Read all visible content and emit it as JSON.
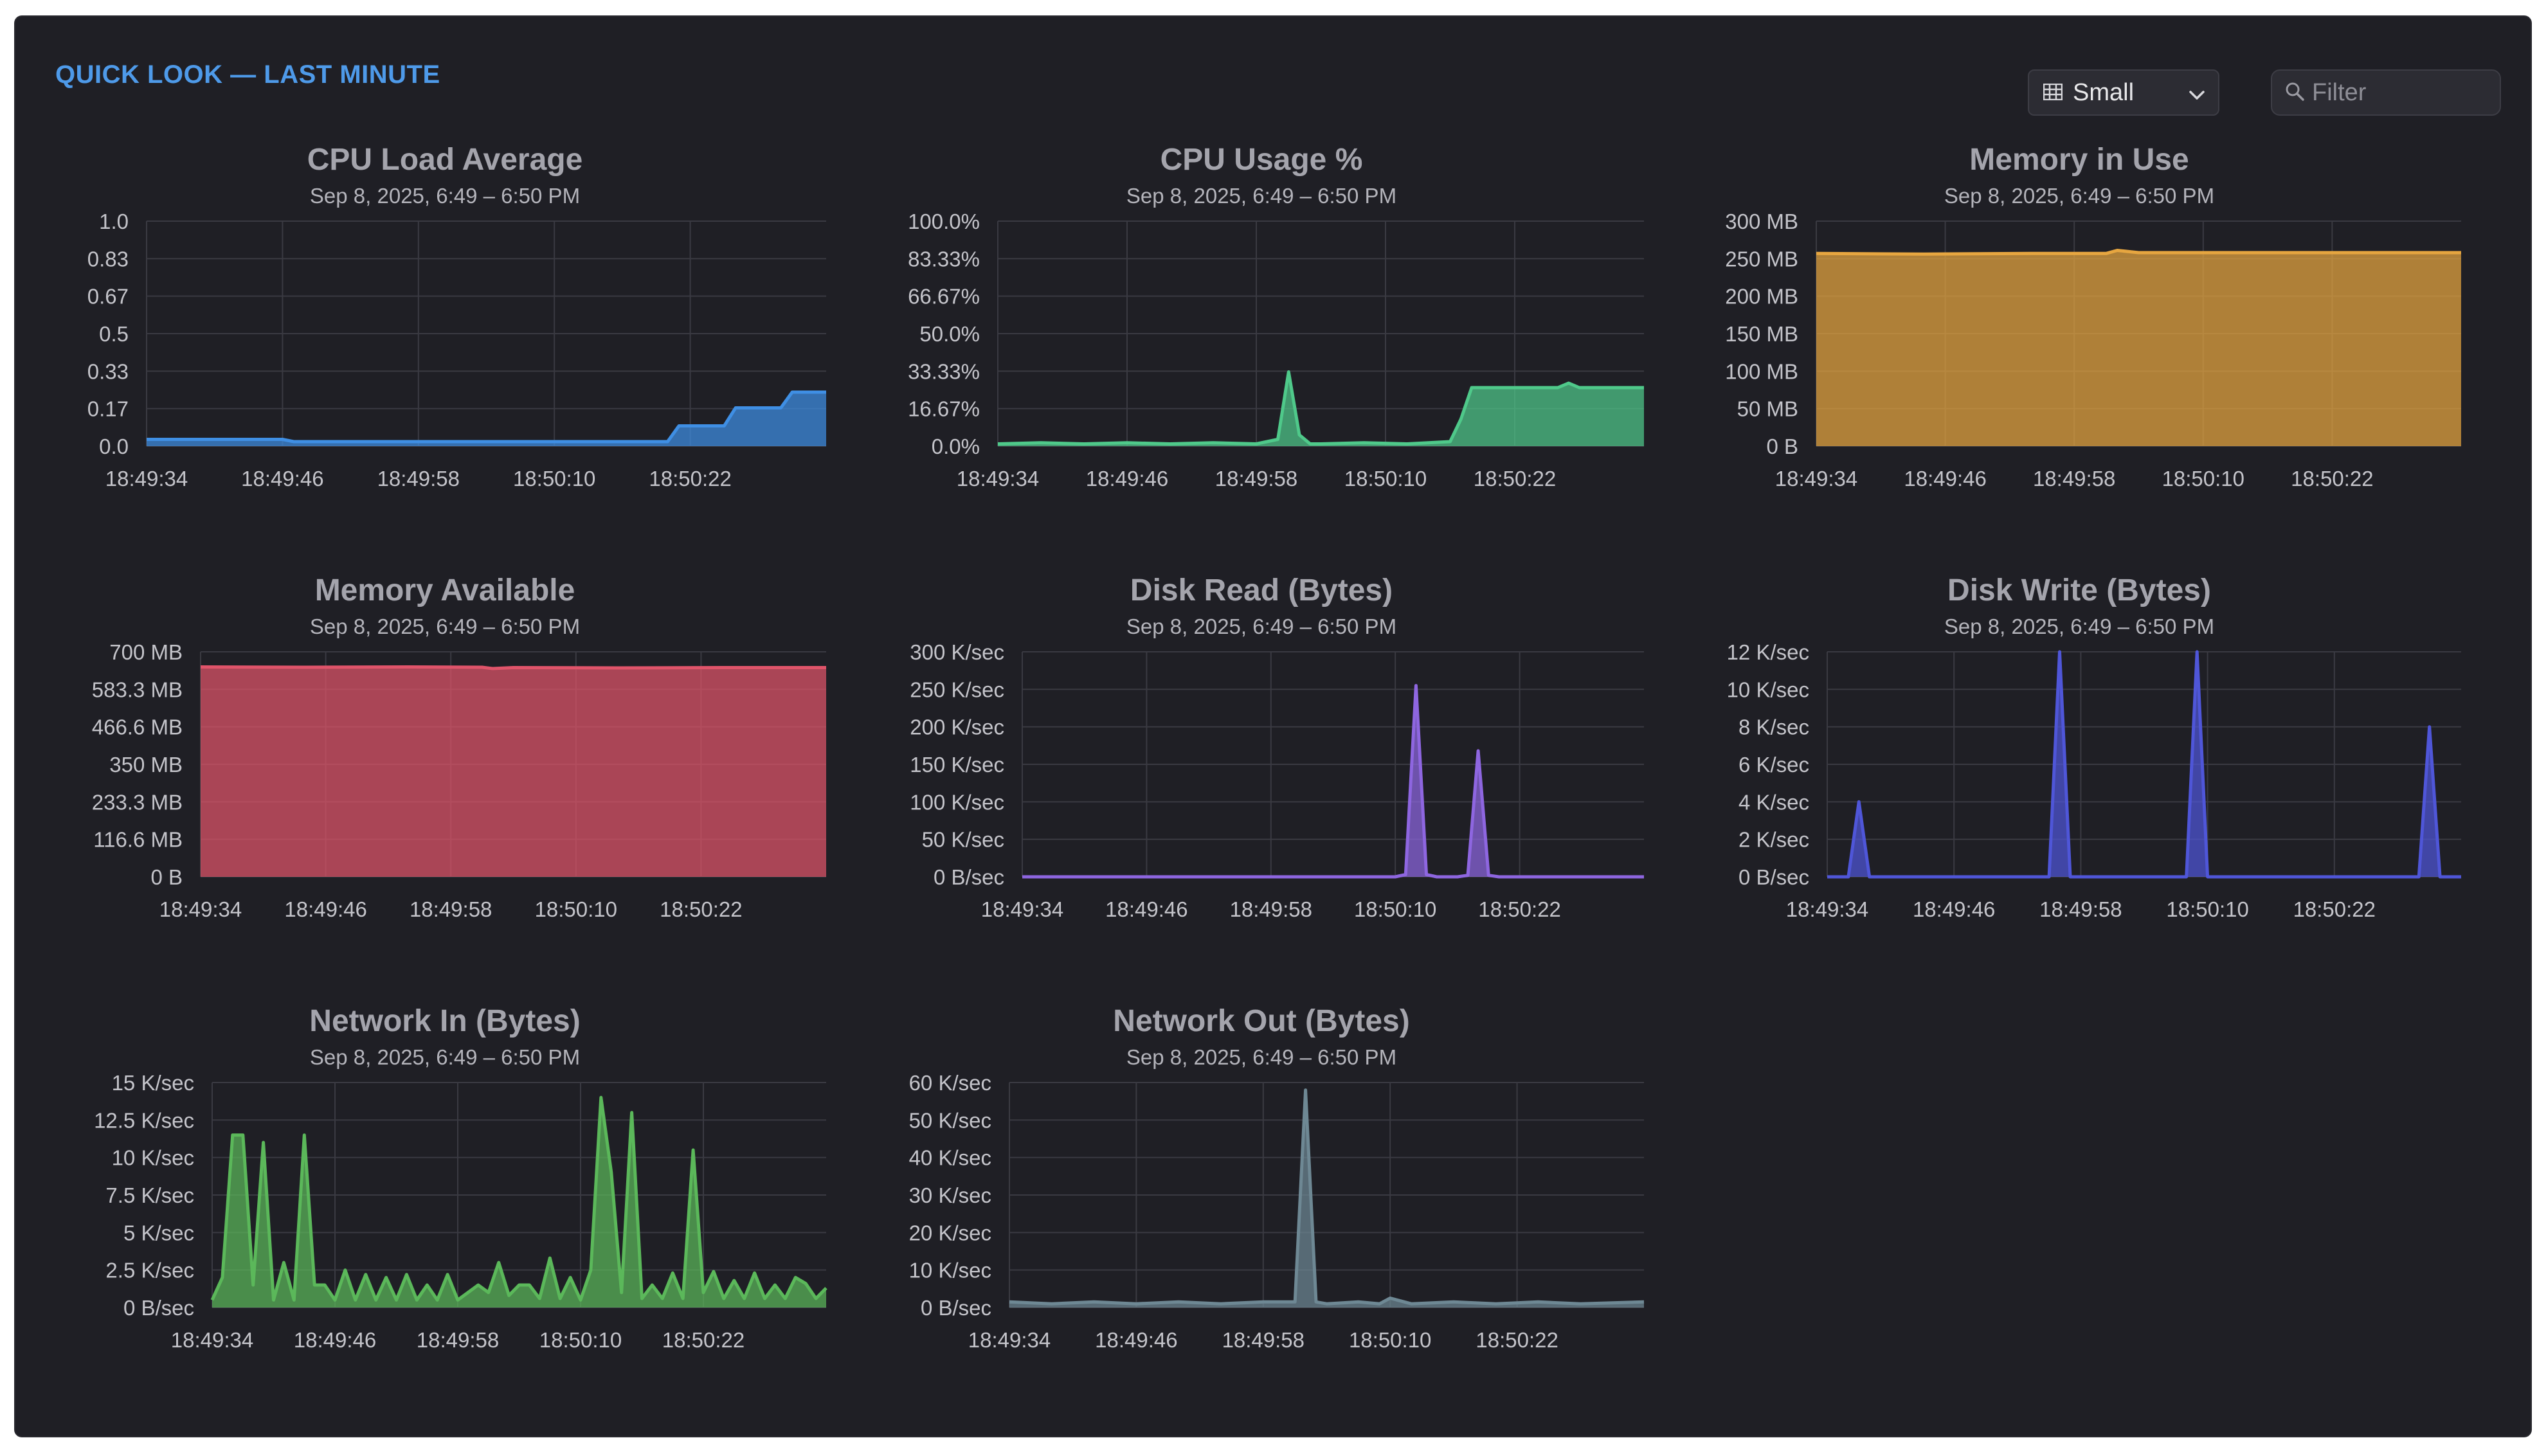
{
  "header": {
    "title": "QUICK LOOK — LAST MINUTE",
    "size_select": {
      "value": "Small"
    },
    "filter": {
      "placeholder": "Filter",
      "value": ""
    }
  },
  "chart_data": [
    {
      "type": "area",
      "title": "CPU Load Average",
      "subtitle": "Sep 8, 2025, 6:49 – 6:50 PM",
      "color": "#3f8fe4",
      "xlabel": "",
      "ylabel": "",
      "x_ticks": [
        "18:49:34",
        "18:49:46",
        "18:49:58",
        "18:50:10",
        "18:50:22"
      ],
      "y_ticks": [
        "1.0",
        "0.83",
        "0.67",
        "0.5",
        "0.33",
        "0.17",
        "0.0"
      ],
      "ylim": [
        0,
        1
      ],
      "x": [
        0,
        12,
        13,
        41,
        46,
        47,
        51,
        52,
        56,
        57,
        60
      ],
      "values": [
        0.03,
        0.03,
        0.02,
        0.02,
        0.02,
        0.09,
        0.09,
        0.17,
        0.17,
        0.24,
        0.24
      ]
    },
    {
      "type": "area",
      "title": "CPU Usage %",
      "subtitle": "Sep 8, 2025, 6:49 – 6:50 PM",
      "color": "#4fc98a",
      "xlabel": "",
      "ylabel": "",
      "x_ticks": [
        "18:49:34",
        "18:49:46",
        "18:49:58",
        "18:50:10",
        "18:50:22"
      ],
      "y_ticks": [
        "100.0%",
        "83.33%",
        "66.67%",
        "50.0%",
        "33.33%",
        "16.67%",
        "0.0%"
      ],
      "ylim": [
        0,
        100
      ],
      "x": [
        0,
        4,
        8,
        12,
        16,
        20,
        24,
        26,
        27,
        28,
        29,
        30,
        34,
        38,
        42,
        43,
        44,
        45,
        46,
        48,
        50,
        52,
        53,
        54,
        56,
        58,
        60
      ],
      "values": [
        1,
        1.5,
        1,
        1.5,
        1,
        1.5,
        1,
        3,
        33,
        5,
        1,
        1,
        1.5,
        1,
        2,
        12,
        26,
        26,
        26,
        26,
        26,
        26,
        28,
        26,
        26,
        26,
        26
      ]
    },
    {
      "type": "area",
      "title": "Memory in Use",
      "subtitle": "Sep 8, 2025, 6:49 – 6:50 PM",
      "color": "#e7a640",
      "xlabel": "",
      "ylabel": "",
      "x_ticks": [
        "18:49:34",
        "18:49:46",
        "18:49:58",
        "18:50:10",
        "18:50:22"
      ],
      "y_ticks": [
        "300 MB",
        "250 MB",
        "200 MB",
        "150 MB",
        "100 MB",
        "50 MB",
        "0 B"
      ],
      "ylim": [
        0,
        300
      ],
      "x": [
        0,
        10,
        20,
        27,
        28,
        30,
        40,
        50,
        60
      ],
      "values": [
        257,
        256,
        257,
        257,
        261,
        258,
        258,
        258,
        258
      ]
    },
    {
      "type": "area",
      "title": "Memory Available",
      "subtitle": "Sep 8, 2025, 6:49 – 6:50 PM",
      "color": "#e0546a",
      "xlabel": "",
      "ylabel": "",
      "x_ticks": [
        "18:49:34",
        "18:49:46",
        "18:49:58",
        "18:50:10",
        "18:50:22"
      ],
      "y_ticks": [
        "700 MB",
        "583.3 MB",
        "466.6 MB",
        "350 MB",
        "233.3 MB",
        "116.6 MB",
        "0 B"
      ],
      "ylim": [
        0,
        700
      ],
      "x": [
        0,
        10,
        20,
        27,
        28,
        30,
        40,
        50,
        60
      ],
      "values": [
        653,
        652,
        653,
        652,
        648,
        651,
        650,
        651,
        651
      ]
    },
    {
      "type": "area",
      "title": "Disk Read (Bytes)",
      "subtitle": "Sep 8, 2025, 6:49 – 6:50 PM",
      "color": "#8e66e0",
      "xlabel": "",
      "ylabel": "",
      "x_ticks": [
        "18:49:34",
        "18:49:46",
        "18:49:58",
        "18:50:10",
        "18:50:22"
      ],
      "y_ticks": [
        "300 K/sec",
        "250 K/sec",
        "200 K/sec",
        "150 K/sec",
        "100 K/sec",
        "50 K/sec",
        "0 B/sec"
      ],
      "ylim": [
        0,
        300
      ],
      "x": [
        0,
        36,
        37,
        38,
        39,
        40,
        42,
        43,
        44,
        45,
        46,
        60
      ],
      "values": [
        0,
        0,
        3,
        255,
        3,
        0,
        0,
        2,
        168,
        2,
        0,
        0
      ]
    },
    {
      "type": "area",
      "title": "Disk Write (Bytes)",
      "subtitle": "Sep 8, 2025, 6:49 – 6:50 PM",
      "color": "#4f56d8",
      "xlabel": "",
      "ylabel": "",
      "x_ticks": [
        "18:49:34",
        "18:49:46",
        "18:49:58",
        "18:50:10",
        "18:50:22"
      ],
      "y_ticks": [
        "12 K/sec",
        "10 K/sec",
        "8 K/sec",
        "6 K/sec",
        "4 K/sec",
        "2 K/sec",
        "0 B/sec"
      ],
      "ylim": [
        0,
        12
      ],
      "x": [
        0,
        2,
        3,
        4,
        21,
        22,
        23,
        34,
        35,
        36,
        56,
        57,
        58,
        60
      ],
      "values": [
        0,
        0,
        4,
        0,
        0,
        12,
        0,
        0,
        12,
        0,
        0,
        8,
        0,
        0
      ]
    },
    {
      "type": "area",
      "title": "Network In (Bytes)",
      "subtitle": "Sep 8, 2025, 6:49 – 6:50 PM",
      "color": "#5bb85a",
      "xlabel": "",
      "ylabel": "",
      "x_ticks": [
        "18:49:34",
        "18:49:46",
        "18:49:58",
        "18:50:10",
        "18:50:22"
      ],
      "y_ticks": [
        "15 K/sec",
        "12.5 K/sec",
        "10 K/sec",
        "7.5 K/sec",
        "5 K/sec",
        "2.5 K/sec",
        "0 B/sec"
      ],
      "ylim": [
        0,
        15
      ],
      "x": [
        0,
        1,
        2,
        3,
        4,
        5,
        6,
        7,
        8,
        9,
        10,
        11,
        12,
        13,
        14,
        15,
        16,
        17,
        18,
        19,
        20,
        21,
        22,
        23,
        24,
        25,
        26,
        27,
        28,
        29,
        30,
        31,
        32,
        33,
        34,
        35,
        36,
        37,
        38,
        39,
        40,
        41,
        42,
        43,
        44,
        45,
        46,
        47,
        48,
        49,
        50,
        51,
        52,
        53,
        54,
        55,
        56,
        57,
        58,
        59,
        60
      ],
      "values": [
        0.5,
        2,
        11.5,
        11.5,
        1.5,
        11,
        0.5,
        3,
        0.5,
        11.5,
        1.5,
        1.5,
        0.5,
        2.5,
        0.5,
        2.2,
        0.5,
        2,
        0.5,
        2.2,
        0.5,
        1.5,
        0.5,
        2.2,
        0.5,
        1,
        1.5,
        1,
        3,
        0.8,
        1.5,
        1.5,
        0.6,
        3.3,
        0.6,
        2,
        0.5,
        2.5,
        14,
        9,
        1,
        13,
        0.6,
        1.5,
        0.6,
        2.3,
        0.6,
        10.5,
        1,
        2.4,
        0.6,
        1.8,
        0.6,
        2.3,
        0.6,
        1.5,
        0.6,
        2,
        1.6,
        0.6,
        1.3
      ]
    },
    {
      "type": "area",
      "title": "Network Out (Bytes)",
      "subtitle": "Sep 8, 2025, 6:49 – 6:50 PM",
      "color": "#6e8894",
      "xlabel": "",
      "ylabel": "",
      "x_ticks": [
        "18:49:34",
        "18:49:46",
        "18:49:58",
        "18:50:10",
        "18:50:22"
      ],
      "y_ticks": [
        "60 K/sec",
        "50 K/sec",
        "40 K/sec",
        "30 K/sec",
        "20 K/sec",
        "10 K/sec",
        "0 B/sec"
      ],
      "ylim": [
        0,
        60
      ],
      "x": [
        0,
        4,
        8,
        12,
        16,
        20,
        24,
        27,
        28,
        29,
        30,
        33,
        35,
        36,
        38,
        42,
        46,
        50,
        54,
        60
      ],
      "values": [
        1.5,
        1,
        1.5,
        1,
        1.5,
        1,
        1.5,
        1.5,
        58,
        1.5,
        1,
        1.5,
        1,
        2.5,
        1,
        1.5,
        1,
        1.5,
        1,
        1.5
      ]
    }
  ]
}
